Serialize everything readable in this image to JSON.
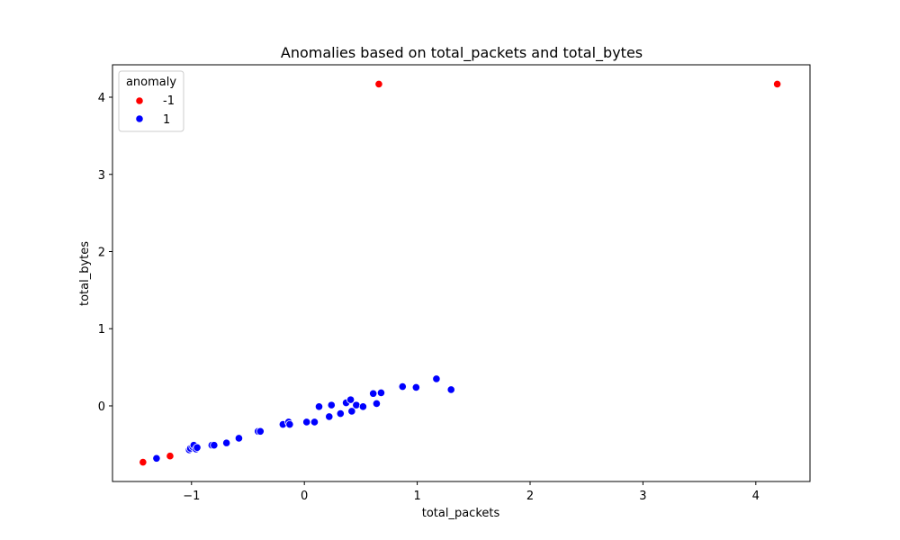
{
  "chart_data": {
    "type": "scatter",
    "title": "Anomalies based on total_packets and total_bytes",
    "xlabel": "total_packets",
    "ylabel": "total_bytes",
    "xlim": [
      -1.7,
      4.48
    ],
    "ylim": [
      -0.98,
      4.42
    ],
    "xticks": [
      -1,
      0,
      1,
      2,
      3,
      4
    ],
    "yticks": [
      0,
      1,
      2,
      3,
      4
    ],
    "xtick_labels": [
      "−1",
      "0",
      "1",
      "2",
      "3",
      "4"
    ],
    "ytick_labels": [
      "0",
      "1",
      "2",
      "3",
      "4"
    ],
    "grid": false,
    "legend": {
      "title": "anomaly",
      "placement": "top-left",
      "entries": [
        {
          "label": "-1",
          "color": "#ff0000"
        },
        {
          "label": "1",
          "color": "#0000ff"
        }
      ]
    },
    "series": [
      {
        "name": "-1",
        "color": "#ff0000",
        "points": [
          {
            "x": 0.66,
            "y": 4.17
          },
          {
            "x": 4.19,
            "y": 4.17
          },
          {
            "x": -1.43,
            "y": -0.73
          },
          {
            "x": -1.19,
            "y": -0.65
          }
        ]
      },
      {
        "name": "1",
        "color": "#0000ff",
        "points": [
          {
            "x": -1.31,
            "y": -0.68
          },
          {
            "x": -1.02,
            "y": -0.57
          },
          {
            "x": -1.01,
            "y": -0.55
          },
          {
            "x": -0.99,
            "y": -0.53
          },
          {
            "x": -0.98,
            "y": -0.51
          },
          {
            "x": -0.96,
            "y": -0.56
          },
          {
            "x": -0.95,
            "y": -0.54
          },
          {
            "x": -0.82,
            "y": -0.51
          },
          {
            "x": -0.8,
            "y": -0.51
          },
          {
            "x": -0.69,
            "y": -0.48
          },
          {
            "x": -0.58,
            "y": -0.42
          },
          {
            "x": -0.41,
            "y": -0.33
          },
          {
            "x": -0.39,
            "y": -0.33
          },
          {
            "x": -0.19,
            "y": -0.24
          },
          {
            "x": -0.14,
            "y": -0.21
          },
          {
            "x": -0.13,
            "y": -0.24
          },
          {
            "x": 0.02,
            "y": -0.21
          },
          {
            "x": 0.09,
            "y": -0.21
          },
          {
            "x": 0.13,
            "y": -0.01
          },
          {
            "x": 0.22,
            "y": -0.14
          },
          {
            "x": 0.24,
            "y": 0.01
          },
          {
            "x": 0.32,
            "y": -0.1
          },
          {
            "x": 0.37,
            "y": 0.04
          },
          {
            "x": 0.41,
            "y": 0.08
          },
          {
            "x": 0.42,
            "y": -0.07
          },
          {
            "x": 0.46,
            "y": 0.01
          },
          {
            "x": 0.52,
            "y": -0.01
          },
          {
            "x": 0.61,
            "y": 0.16
          },
          {
            "x": 0.64,
            "y": 0.03
          },
          {
            "x": 0.68,
            "y": 0.17
          },
          {
            "x": 0.87,
            "y": 0.25
          },
          {
            "x": 0.99,
            "y": 0.24
          },
          {
            "x": 1.17,
            "y": 0.35
          },
          {
            "x": 1.3,
            "y": 0.21
          }
        ]
      }
    ]
  }
}
